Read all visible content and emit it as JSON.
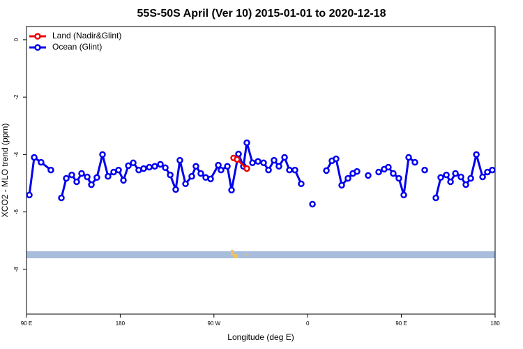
{
  "chart_data": {
    "type": "line",
    "title": "55S-50S April (Ver 10)   2015-01-01 to 2020-12-18",
    "x_label": "Longitude (deg E)",
    "y_label": "XCO2 - MLO trend (ppm)",
    "xlim": [
      90,
      540
    ],
    "xticks": [
      {
        "value": 90,
        "label": "90 E"
      },
      180,
      {
        "value": 270,
        "label": "90 W"
      },
      {
        "value": 360,
        "label": "0"
      },
      {
        "value": 450,
        "label": "90 E"
      },
      {
        "value": 540,
        "label": "180"
      }
    ],
    "ylim": [
      -9.56,
      0.46
    ],
    "yticks": [
      0,
      -2,
      -4,
      -6,
      -8
    ],
    "legend": "top-left",
    "series": [
      {
        "name": "Land (Nadir&Glint)",
        "color": "#ee0000",
        "x": [
          288.9,
          292.2,
          301.6
        ],
        "values": [
          -4.12,
          -4.17,
          -4.49
        ]
      },
      {
        "name": "Ocean (Glint)",
        "color": "#0000ee",
        "x": [
          92.7,
          97.4,
          104.0,
          113.4,
          118.0,
          123.5,
          128.2,
          133.5,
          138.2,
          142.9,
          148.3,
          152.3,
          157.6,
          163.0,
          168.3,
          173.7,
          178.4,
          183.1,
          187.8,
          192.5,
          197.8,
          202.5,
          207.9,
          213.2,
          218.6,
          223.3,
          228.0,
          233.3,
          237.3,
          242.7,
          248.7,
          252.7,
          257.4,
          262.1,
          266.8,
          274.2,
          276.8,
          282.9,
          286.9,
          293.6,
          298.3,
          301.6,
          307.0,
          312.3,
          317.7,
          322.4,
          327.7,
          332.4,
          337.8,
          342.5,
          347.8,
          353.8,
          359.0,
          364.6,
          371.0,
          378.0,
          383.3,
          387.3,
          392.7,
          398.7,
          403.4,
          407.4,
          413.0,
          418.1,
          423.0,
          428.2,
          433.5,
          437.5,
          442.2,
          447.6,
          452.3,
          457.0,
          463.0,
          468.0,
          472.4,
          478.0,
          483.1,
          487.8,
          493.2,
          497.2,
          501.9,
          507.2,
          511.9,
          516.6,
          522.0,
          528.0,
          532.6,
          537.3
        ],
        "values": [
          -5.41,
          -4.1,
          -4.27,
          -4.54,
          null,
          -5.51,
          -4.83,
          -4.71,
          -4.95,
          -4.66,
          -4.78,
          -5.05,
          -4.8,
          -4.0,
          -4.76,
          -4.61,
          -4.54,
          -4.9,
          -4.39,
          -4.29,
          -4.54,
          -4.49,
          -4.44,
          -4.41,
          -4.34,
          -4.46,
          -4.71,
          -5.22,
          -4.2,
          -5.02,
          -4.76,
          -4.41,
          -4.66,
          -4.8,
          -4.85,
          -4.37,
          -4.54,
          -4.41,
          -5.24,
          -3.98,
          -4.41,
          -3.59,
          -4.29,
          -4.24,
          -4.29,
          -4.54,
          -4.2,
          -4.41,
          -4.1,
          -4.54,
          -4.54,
          -5.02,
          null,
          -5.73,
          null,
          -4.56,
          -4.22,
          -4.15,
          -5.07,
          -4.83,
          -4.66,
          -4.59,
          null,
          -4.73,
          null,
          -4.61,
          -4.51,
          -4.44,
          -4.66,
          -4.83,
          -5.41,
          -4.1,
          -4.27,
          null,
          -4.54,
          null,
          -5.51,
          -4.8,
          -4.71,
          -4.95,
          -4.66,
          -4.78,
          -5.05,
          -4.83,
          -4.0,
          -4.78,
          -4.61,
          -4.54
        ]
      }
    ]
  }
}
